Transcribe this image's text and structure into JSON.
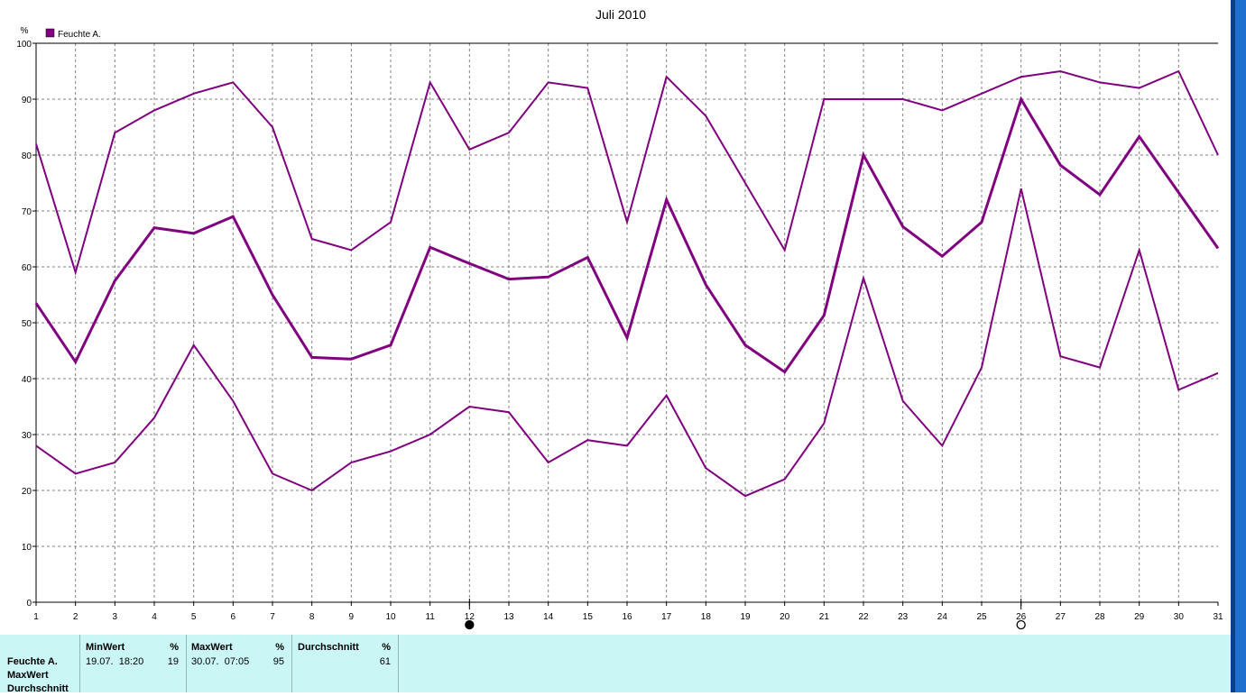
{
  "colors": {
    "series": "#800080",
    "grid": "#808080",
    "panel_bg": "#cbf6f6",
    "window_edge": "#1e6fd0"
  },
  "chart_data": {
    "type": "line",
    "title": "Juli 2010",
    "ylabel": "%",
    "ylim": [
      0,
      100
    ],
    "yticks": [
      0,
      10,
      20,
      30,
      40,
      50,
      60,
      70,
      80,
      90,
      100
    ],
    "x": [
      1,
      2,
      3,
      4,
      5,
      6,
      7,
      8,
      9,
      10,
      11,
      12,
      13,
      14,
      15,
      16,
      17,
      18,
      19,
      20,
      21,
      22,
      23,
      24,
      25,
      26,
      27,
      28,
      29,
      30,
      31
    ],
    "xlim": [
      1,
      31
    ],
    "grid": true,
    "legend": {
      "entries": [
        "Feuchte A."
      ],
      "placement": "top-left"
    },
    "moon_markers": [
      {
        "day": 12,
        "symbol": "new-moon"
      },
      {
        "day": 26,
        "symbol": "full-moon"
      }
    ],
    "series": [
      {
        "name": "Feuchte A.",
        "role": "max",
        "values": [
          82,
          59,
          84,
          88,
          91,
          93,
          85,
          65,
          63,
          68,
          93,
          81,
          84,
          93,
          92,
          68,
          94,
          87,
          75,
          63,
          90,
          90,
          90,
          88,
          91,
          94,
          95,
          93,
          92,
          95,
          80
        ]
      },
      {
        "name": "Feuchte A.",
        "role": "avg",
        "values": [
          53.5,
          43,
          57.5,
          67,
          66,
          69,
          55,
          43.8,
          43.5,
          46,
          63.5,
          60.6,
          57.8,
          58.2,
          61.7,
          47.3,
          72,
          56.8,
          46,
          41.2,
          51.3,
          80,
          67.2,
          61.9,
          68,
          90,
          78.2,
          72.9,
          83.3,
          73.3,
          63.3
        ]
      },
      {
        "name": "Feuchte A.",
        "role": "min",
        "values": [
          28,
          23,
          25,
          33,
          46,
          36,
          23,
          20,
          25,
          27,
          30,
          35,
          34,
          25,
          29,
          28,
          37,
          24,
          19,
          22,
          32,
          58,
          36,
          28,
          42,
          74,
          44,
          42,
          63,
          38,
          41
        ]
      }
    ]
  },
  "stats": {
    "row_labels": [
      "Feuchte A.",
      "MaxWert",
      "Durchschnitt"
    ],
    "columns": [
      {
        "header": "MinWert",
        "unit": "%",
        "left_value": "19.07.  18:20",
        "right_value": "19"
      },
      {
        "header": "MaxWert",
        "unit": "%",
        "left_value": "30.07.  07:05",
        "right_value": "95"
      },
      {
        "header": "Durchschnitt",
        "unit": "%",
        "left_value": "",
        "right_value": "61"
      }
    ]
  }
}
